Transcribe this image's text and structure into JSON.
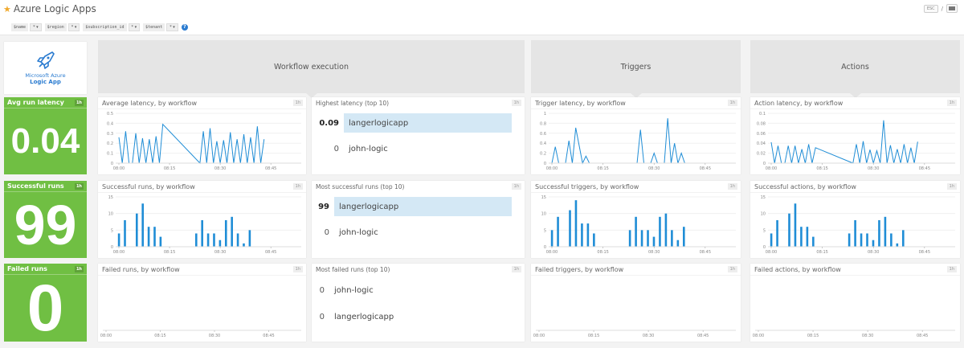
{
  "header": {
    "title": "Azure Logic Apps",
    "esc_label": "ESC",
    "sep": "/"
  },
  "template_vars": [
    {
      "name": "$name",
      "value": "*"
    },
    {
      "name": "$region",
      "value": "*"
    },
    {
      "name": "$subscription_id",
      "value": "*"
    },
    {
      "name": "$tenant",
      "value": "*"
    }
  ],
  "help": "?",
  "logo": {
    "line1": "Microsoft Azure",
    "line2": "Logic App"
  },
  "sections": {
    "workflow": "Workflow execution",
    "triggers": "Triggers",
    "actions": "Actions"
  },
  "query_values": [
    {
      "label": "Avg run latency",
      "timeframe": "1h",
      "value": "0.04"
    },
    {
      "label": "Successful runs",
      "timeframe": "1h",
      "value": "99"
    },
    {
      "label": "Failed runs",
      "timeframe": "1h",
      "value": "0"
    }
  ],
  "toplists": [
    {
      "title": "Highest latency (top 10)",
      "timeframe": "1h",
      "rows": [
        {
          "value": "0.09",
          "name": "langerlogicapp"
        },
        {
          "value": "0",
          "name": "john-logic"
        }
      ]
    },
    {
      "title": "Most successful runs (top 10)",
      "timeframe": "1h",
      "rows": [
        {
          "value": "99",
          "name": "langerlogicapp"
        },
        {
          "value": "0",
          "name": "john-logic"
        }
      ]
    },
    {
      "title": "Most failed runs (top 10)",
      "timeframe": "1h",
      "rows": [
        {
          "value": "0",
          "name": "john-logic"
        },
        {
          "value": "0",
          "name": "langerlogicapp"
        }
      ]
    }
  ],
  "graphs": {
    "avg_latency": {
      "title": "Average latency, by workflow",
      "timeframe": "1h"
    },
    "trigger_latency": {
      "title": "Trigger latency, by workflow",
      "timeframe": "1h"
    },
    "action_latency": {
      "title": "Action latency, by workflow",
      "timeframe": "1h"
    },
    "successful_runs": {
      "title": "Successful runs, by workflow",
      "timeframe": "1h"
    },
    "successful_triggers": {
      "title": "Successful triggers, by workflow",
      "timeframe": "1h"
    },
    "successful_actions": {
      "title": "Successful actions, by workflow",
      "timeframe": "1h"
    },
    "failed_runs": {
      "title": "Failed runs, by workflow",
      "timeframe": "1h"
    },
    "failed_triggers": {
      "title": "Failed triggers, by workflow",
      "timeframe": "1h"
    },
    "failed_actions": {
      "title": "Failed actions, by workflow",
      "timeframe": "1h"
    }
  },
  "chart_data": [
    {
      "id": "avg_latency",
      "type": "line",
      "title": "Average latency, by workflow",
      "x_ticks": [
        "08:00",
        "08:15",
        "08:30",
        "08:45"
      ],
      "y_ticks": [
        "0",
        "0.1",
        "0.2",
        "0.3",
        "0.4",
        "0.5"
      ],
      "ylim": [
        0,
        0.5
      ],
      "x": [
        0,
        1,
        2,
        3,
        4,
        5,
        6,
        7,
        8,
        9,
        10,
        11,
        12,
        13,
        24,
        25,
        26,
        27,
        28,
        29,
        30,
        31,
        32,
        33,
        34,
        35,
        36,
        37,
        38,
        39,
        40,
        41,
        42,
        43
      ],
      "values": [
        0.26,
        0,
        0.32,
        0,
        0,
        0.3,
        0,
        0.25,
        0,
        0.24,
        0,
        0.27,
        0,
        0.39,
        0,
        0.32,
        0,
        0.35,
        0,
        0.22,
        0,
        0.23,
        0,
        0.31,
        0,
        0.24,
        0,
        0.29,
        0,
        0.26,
        0,
        0.37,
        0,
        0.24
      ]
    },
    {
      "id": "trigger_latency",
      "type": "line",
      "title": "Trigger latency, by workflow",
      "x_ticks": [
        "08:00",
        "08:15",
        "08:30",
        "08:45"
      ],
      "y_ticks": [
        "0",
        "0.2",
        "0.4",
        "0.6",
        "0.8",
        "1"
      ],
      "ylim": [
        0,
        1
      ],
      "x": [
        0,
        1,
        2,
        4,
        5,
        6,
        7,
        9,
        10,
        11,
        25,
        26,
        27,
        29,
        30,
        31,
        33,
        34,
        35,
        36,
        37,
        38,
        39
      ],
      "values": [
        0,
        0.33,
        0,
        0,
        0.45,
        0,
        0.71,
        0,
        0.14,
        0,
        0,
        0.67,
        0,
        0,
        0.2,
        0,
        0,
        0.9,
        0,
        0.4,
        0,
        0.2,
        0
      ]
    },
    {
      "id": "action_latency",
      "type": "line",
      "title": "Action latency, by workflow",
      "x_ticks": [
        "08:00",
        "08:15",
        "08:30",
        "08:45"
      ],
      "y_ticks": [
        "0",
        "0.02",
        "0.04",
        "0.06",
        "0.08",
        "0.1"
      ],
      "ylim": [
        0,
        0.1
      ],
      "x": [
        0,
        1,
        2,
        3,
        4,
        5,
        6,
        7,
        8,
        9,
        10,
        11,
        12,
        13,
        24,
        25,
        26,
        27,
        28,
        29,
        30,
        31,
        32,
        33,
        34,
        35,
        36,
        37,
        38,
        39,
        40,
        41,
        42,
        43
      ],
      "values": [
        0.042,
        0,
        0.035,
        0,
        0,
        0.035,
        0,
        0.035,
        0,
        0.028,
        0,
        0.038,
        0,
        0.031,
        0,
        0.038,
        0,
        0.044,
        0,
        0.027,
        0,
        0.025,
        0,
        0.086,
        0,
        0.036,
        0,
        0.028,
        0,
        0.038,
        0,
        0.031,
        0,
        0.043
      ]
    },
    {
      "id": "successful_runs",
      "type": "bar",
      "title": "Successful runs, by workflow",
      "x_ticks": [
        "08:00",
        "08:15",
        "08:30",
        "08:45"
      ],
      "y_ticks": [
        "0",
        "5",
        "10",
        "15"
      ],
      "ylim": [
        0,
        15
      ],
      "x": [
        0,
        2,
        6,
        8,
        10,
        12,
        14,
        26,
        28,
        30,
        32,
        34,
        36,
        38,
        40,
        42,
        44
      ],
      "values": [
        4,
        8,
        10,
        13,
        6,
        6,
        3,
        4,
        8,
        4,
        4,
        2,
        8,
        9,
        4,
        1,
        5
      ]
    },
    {
      "id": "successful_triggers",
      "type": "bar",
      "title": "Successful triggers, by workflow",
      "x_ticks": [
        "08:00",
        "08:15",
        "08:30",
        "08:45"
      ],
      "y_ticks": [
        "0",
        "5",
        "10",
        "15"
      ],
      "ylim": [
        0,
        15
      ],
      "x": [
        0,
        2,
        6,
        8,
        10,
        12,
        14,
        26,
        28,
        30,
        32,
        34,
        36,
        38,
        40,
        42,
        44
      ],
      "values": [
        5,
        9,
        11,
        14,
        7,
        7,
        4,
        5,
        9,
        5,
        5,
        3,
        9,
        10,
        5,
        2,
        6
      ]
    },
    {
      "id": "successful_actions",
      "type": "bar",
      "title": "Successful actions, by workflow",
      "x_ticks": [
        "08:00",
        "08:15",
        "08:30",
        "08:45"
      ],
      "y_ticks": [
        "0",
        "5",
        "10",
        "15"
      ],
      "ylim": [
        0,
        15
      ],
      "x": [
        0,
        2,
        6,
        8,
        10,
        12,
        14,
        26,
        28,
        30,
        32,
        34,
        36,
        38,
        40,
        42,
        44
      ],
      "values": [
        4,
        8,
        10,
        13,
        6,
        6,
        3,
        4,
        8,
        4,
        4,
        2,
        8,
        9,
        4,
        1,
        5
      ]
    },
    {
      "id": "failed_runs",
      "type": "line",
      "title": "Failed runs, by workflow",
      "x_ticks": [
        "08:00",
        "08:15",
        "08:30",
        "08:45"
      ],
      "values": []
    },
    {
      "id": "failed_triggers",
      "type": "line",
      "title": "Failed triggers, by workflow",
      "x_ticks": [
        "08:00",
        "08:15",
        "08:30",
        "08:45"
      ],
      "values": []
    },
    {
      "id": "failed_actions",
      "type": "line",
      "title": "Failed actions, by workflow",
      "x_ticks": [
        "08:00",
        "08:15",
        "08:30",
        "08:45"
      ],
      "values": []
    }
  ],
  "colors": {
    "accent": "#1f8dd6",
    "green": "#70bf43",
    "highlight": "#d4e8f5"
  }
}
